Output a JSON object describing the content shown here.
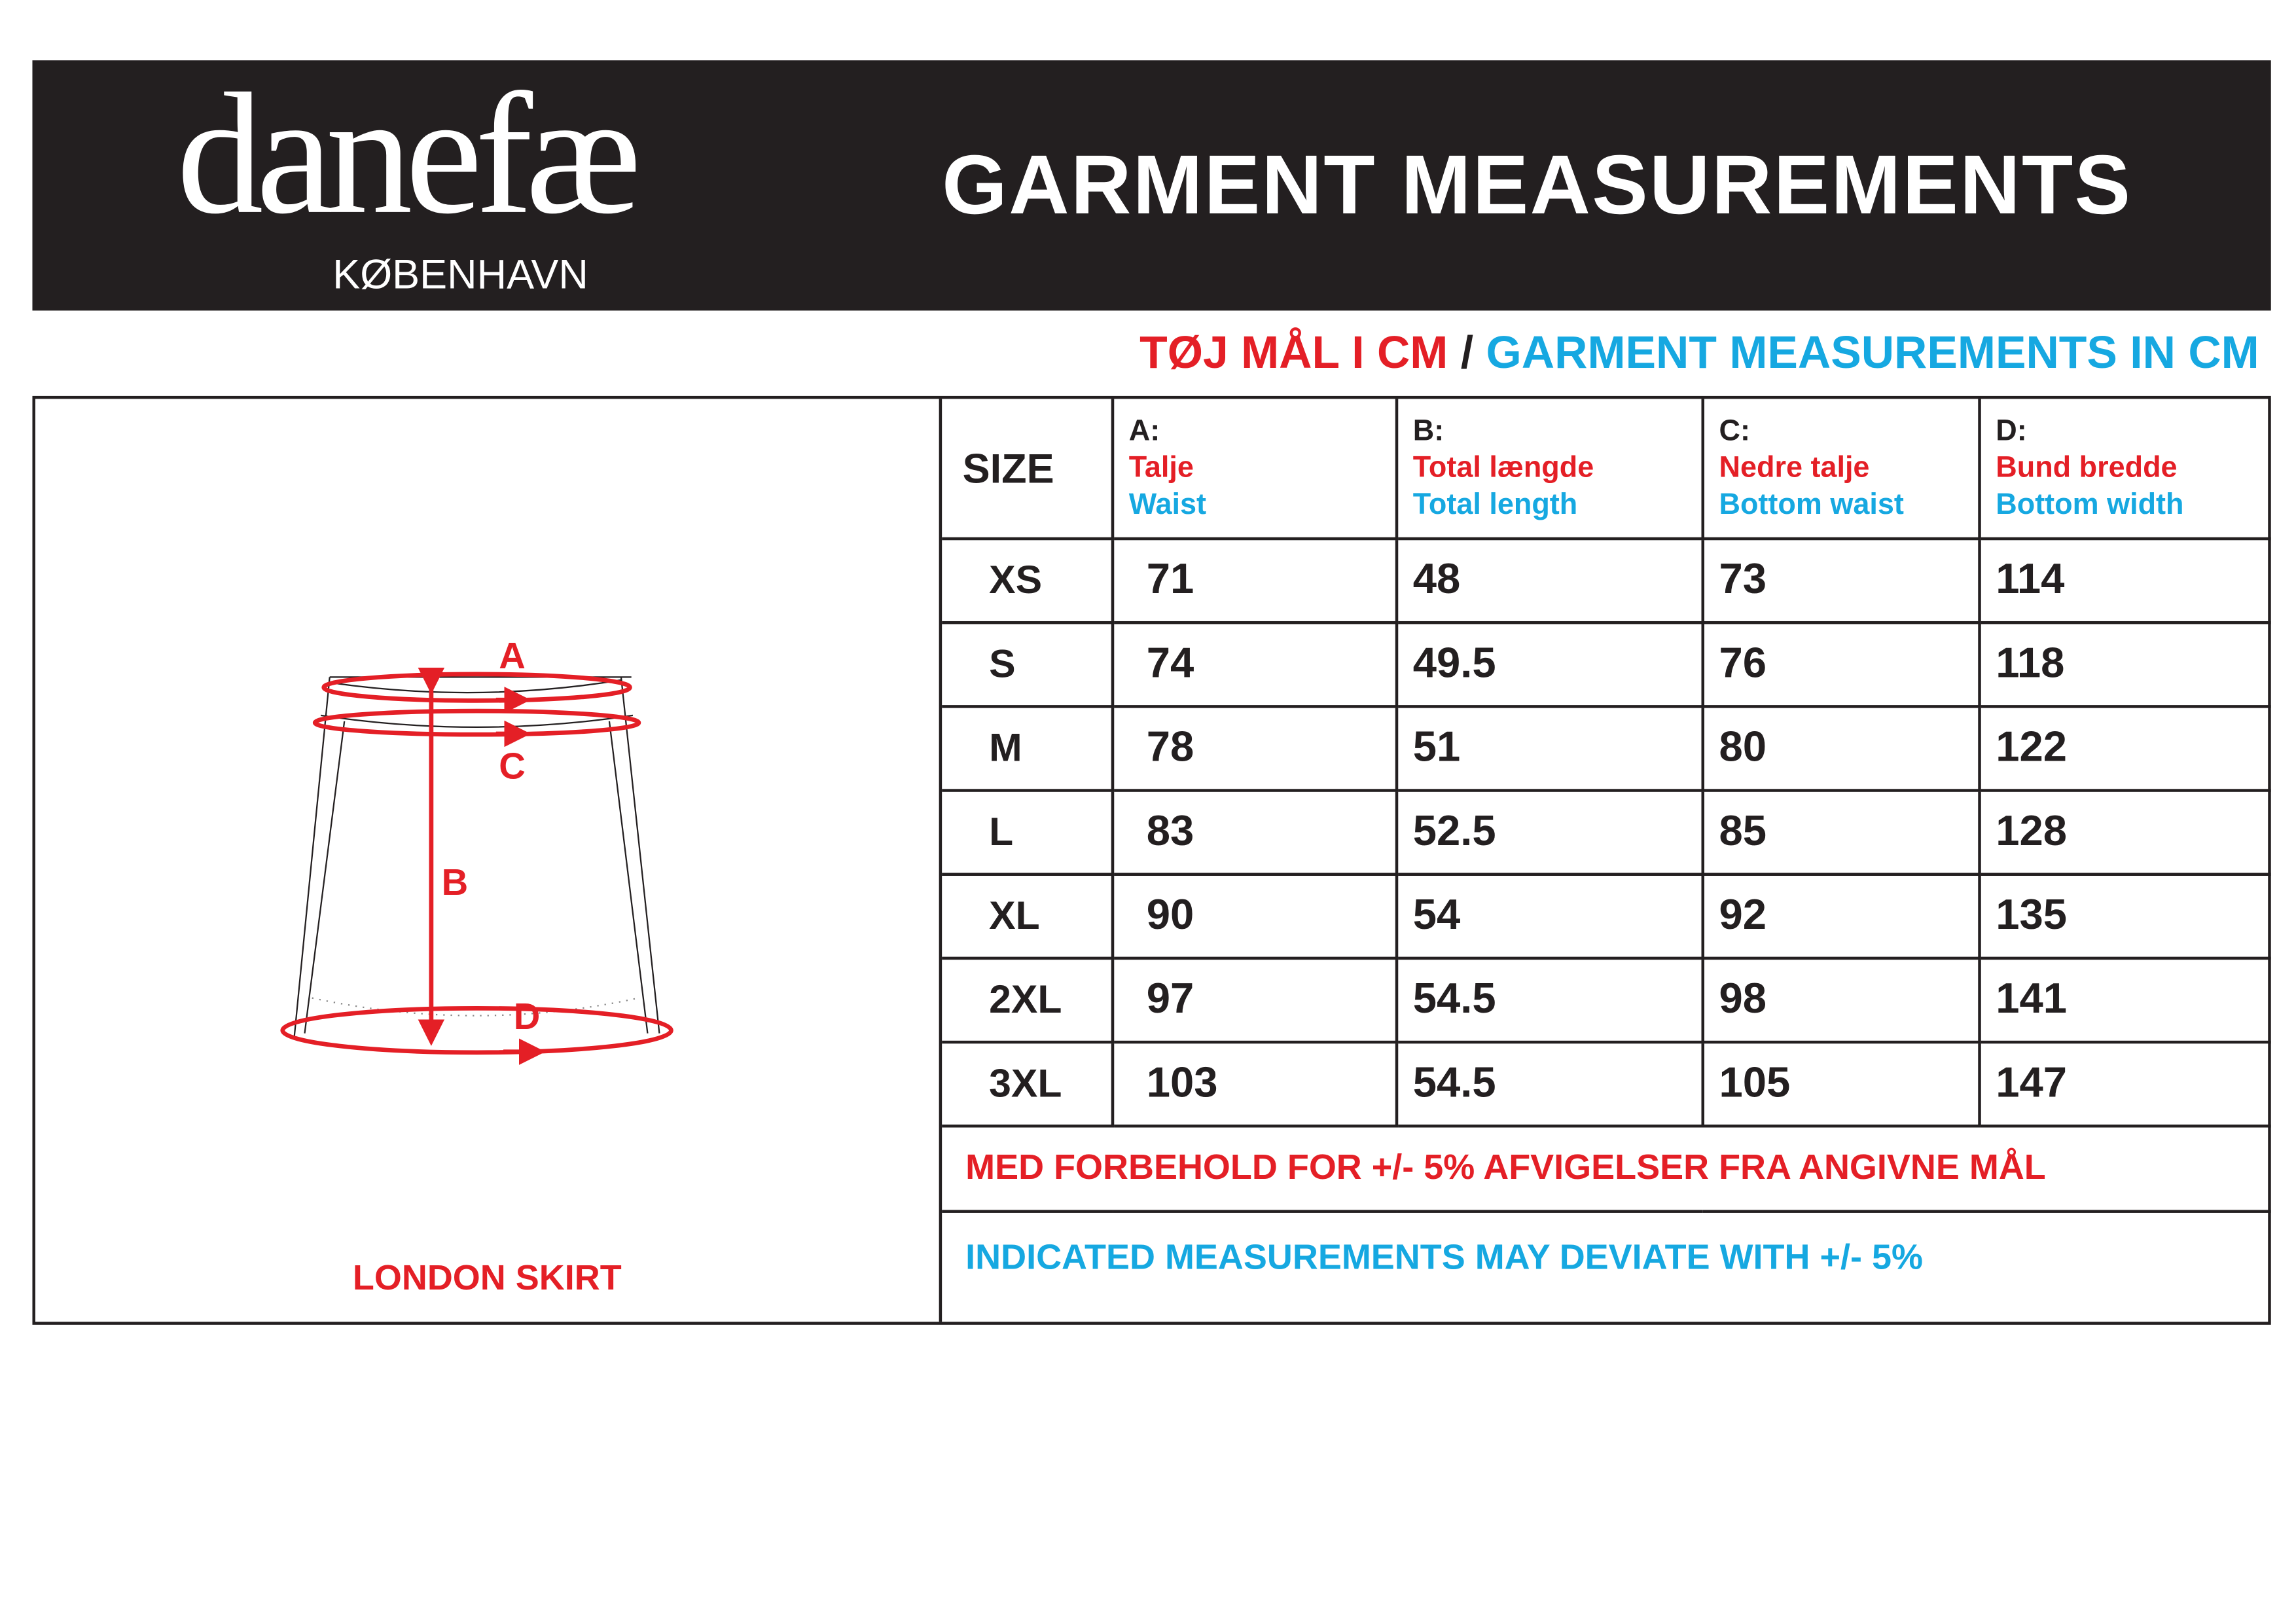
{
  "brand": {
    "logo": "danefæ",
    "logo_sub": "KØBENHAVN"
  },
  "header": {
    "title": "GARMENT MEASUREMENTS"
  },
  "subtitle": {
    "danish": "TØJ MÅL I CM",
    "separator": "/",
    "english": "GARMENT MEASUREMENTS IN CM"
  },
  "colors": {
    "red": "#e41f26",
    "blue": "#16a8e1",
    "dark": "#231f20"
  },
  "diagram": {
    "labels": {
      "a": "A",
      "b": "B",
      "c": "C",
      "d": "D"
    },
    "caption": "LONDON SKIRT"
  },
  "table": {
    "size_header": "SIZE",
    "columns": [
      {
        "code": "A:",
        "danish": "Talje",
        "english": "Waist"
      },
      {
        "code": "B:",
        "danish": "Total længde",
        "english": "Total length"
      },
      {
        "code": "C:",
        "danish": "Nedre talje",
        "english": "Bottom waist"
      },
      {
        "code": "D:",
        "danish": "Bund bredde",
        "english": "Bottom width"
      }
    ],
    "rows": [
      {
        "size": "XS",
        "a": "71",
        "b": "48",
        "c": "73",
        "d": "114"
      },
      {
        "size": "S",
        "a": "74",
        "b": "49.5",
        "c": "76",
        "d": "118"
      },
      {
        "size": "M",
        "a": "78",
        "b": "51",
        "c": "80",
        "d": "122"
      },
      {
        "size": "L",
        "a": "83",
        "b": "52.5",
        "c": "85",
        "d": "128"
      },
      {
        "size": "XL",
        "a": "90",
        "b": "54",
        "c": "92",
        "d": "135"
      },
      {
        "size": "2XL",
        "a": "97",
        "b": "54.5",
        "c": "98",
        "d": "141"
      },
      {
        "size": "3XL",
        "a": "103",
        "b": "54.5",
        "c": "105",
        "d": "147"
      }
    ],
    "note_danish": "MED FORBEHOLD FOR +/- 5% AFVIGELSER FRA ANGIVNE MÅL",
    "note_english": "INDICATED MEASUREMENTS MAY DEVIATE WITH +/- 5%"
  }
}
